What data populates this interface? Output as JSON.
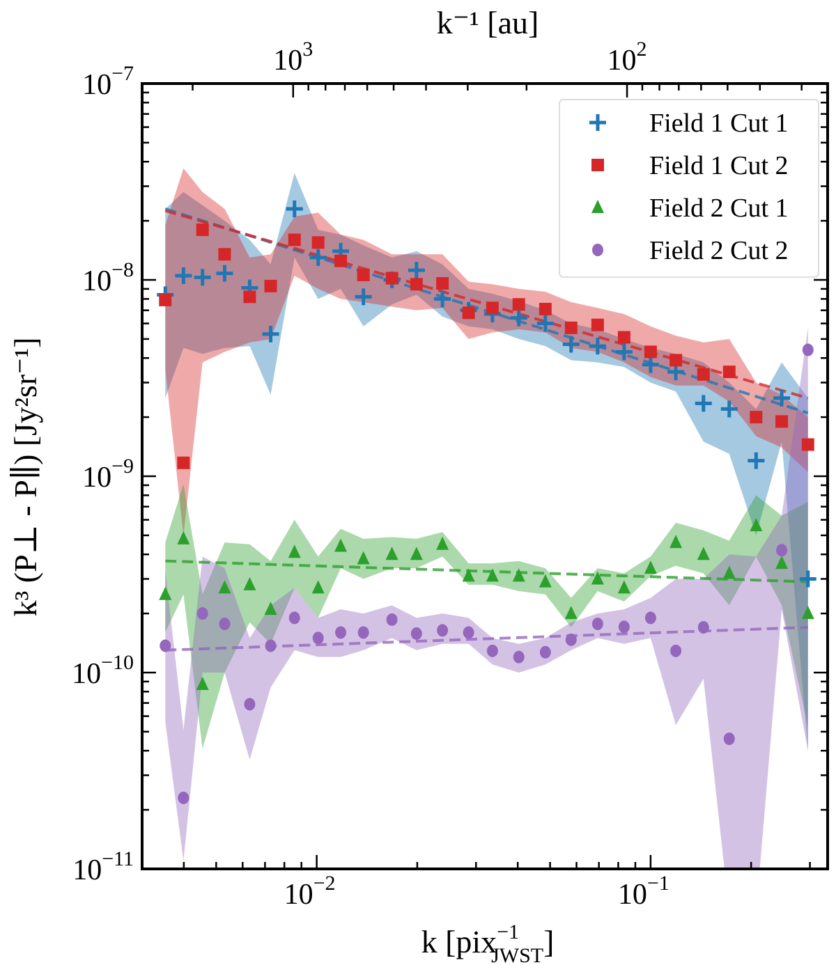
{
  "chart_data": {
    "type": "scatter",
    "title": "",
    "xlabel": {
      "main": "k [pix",
      "sub": "JWST",
      "sup": "−1",
      "close": "]"
    },
    "ylabel": "k³ (P⊥ - P∥) [Jy²sr⁻¹]",
    "top_xlabel": "k⁻¹ [au]",
    "xscale": "log",
    "yscale": "log",
    "xlim": [
      0.003,
      0.339
    ],
    "ylim": [
      1e-11,
      1e-07
    ],
    "grid": false,
    "legend_position": "top-right",
    "x_ticks": [
      {
        "value": 0.01,
        "base": "10",
        "exp": "−2"
      },
      {
        "value": 0.1,
        "base": "10",
        "exp": "−1"
      }
    ],
    "y_ticks": [
      {
        "value": 1e-07,
        "base": "10",
        "exp": "−7"
      },
      {
        "value": 1e-08,
        "base": "10",
        "exp": "−8"
      },
      {
        "value": 1e-09,
        "base": "10",
        "exp": "−9"
      },
      {
        "value": 1e-10,
        "base": "10",
        "exp": "−10"
      },
      {
        "value": 1e-11,
        "base": "10",
        "exp": "−11"
      }
    ],
    "top_ticks": [
      {
        "value": 1000,
        "base": "10",
        "exp": "3"
      },
      {
        "value": 100,
        "base": "10",
        "exp": "2"
      }
    ],
    "x": [
      0.00352,
      0.00399,
      0.00455,
      0.0053,
      0.0063,
      0.00728,
      0.00858,
      0.0101,
      0.0118,
      0.0138,
      0.0168,
      0.0199,
      0.0238,
      0.0285,
      0.0336,
      0.0403,
      0.0484,
      0.0578,
      0.0694,
      0.0833,
      0.1,
      0.119,
      0.144,
      0.172,
      0.207,
      0.247,
      0.296
    ],
    "series": [
      {
        "name": "Field 1 Cut 1",
        "color": "#1f77b4",
        "marker": "plus",
        "values": [
          8.4e-09,
          1.05e-08,
          1.03e-08,
          1.08e-08,
          9.1e-09,
          5.3e-09,
          2.3e-08,
          1.3e-08,
          1.4e-08,
          8.2e-09,
          1e-08,
          1.12e-08,
          8e-09,
          7e-09,
          6.7e-09,
          6.4e-09,
          6e-09,
          4.7e-09,
          4.6e-09,
          4.3e-09,
          3.7e-09,
          3.4e-09,
          2.35e-09,
          2.2e-09,
          1.2e-09,
          2.5e-09,
          3e-10
        ],
        "upper": [
          2.3e-08,
          2.8e-08,
          2.4e-08,
          2e-08,
          1.6e-08,
          1.2e-08,
          3.5e-08,
          1.8e-08,
          1.7e-08,
          1.5e-08,
          1.3e-08,
          1.4e-08,
          1.2e-08,
          9e-09,
          8.5e-09,
          7.8e-09,
          7e-09,
          6e-09,
          5.6e-09,
          5e-09,
          4.5e-09,
          4.2e-09,
          3.8e-09,
          3e-09,
          2.2e-09,
          3.8e-09,
          2.5e-09
        ],
        "lower": [
          2.5e-09,
          4.5e-09,
          4.2e-09,
          4.5e-09,
          4.6e-09,
          2.6e-09,
          1.3e-08,
          8e-09,
          9e-09,
          5.8e-09,
          7.5e-09,
          8.4e-09,
          6.5e-09,
          5.8e-09,
          5.6e-09,
          5e-09,
          4.6e-09,
          3.9e-09,
          3.8e-09,
          3.6e-09,
          3e-09,
          2.7e-09,
          1.5e-09,
          1.3e-09,
          5e-10,
          1.5e-09,
          4e-11
        ],
        "fit": [
          2.3e-08,
          2.1e-09
        ]
      },
      {
        "name": "Field 1 Cut 2",
        "color": "#d62728",
        "marker": "square",
        "values": [
          7.9e-09,
          1.17e-09,
          1.8e-08,
          1.35e-08,
          8.2e-09,
          9.3e-09,
          1.6e-08,
          1.55e-08,
          1.25e-08,
          1.06e-08,
          1.02e-08,
          9.5e-09,
          9.6e-09,
          6.8e-09,
          7.2e-09,
          7.5e-09,
          7.1e-09,
          5.7e-09,
          5.9e-09,
          5.1e-09,
          4.3e-09,
          3.9e-09,
          3.3e-09,
          3.4e-09,
          2e-09,
          1.9e-09,
          1.45e-09
        ],
        "upper": [
          1.9e-08,
          3.7e-08,
          2.8e-08,
          2.3e-08,
          1.3e-08,
          1.35e-08,
          2.1e-08,
          2.2e-08,
          1.7e-08,
          1.6e-08,
          1.35e-08,
          1.35e-08,
          1.35e-08,
          9.8e-09,
          9.5e-09,
          9e-09,
          8.7e-09,
          7.7e-09,
          7.2e-09,
          6.7e-09,
          5.8e-09,
          5.2e-09,
          4.8e-09,
          5e-09,
          3e-09,
          2.6e-09,
          2e-09
        ],
        "lower": [
          3.5e-09,
          5e-10,
          3.8e-09,
          4.3e-09,
          4.8e-09,
          5e-09,
          1.05e-08,
          9e-09,
          8e-09,
          7.7e-09,
          7.3e-09,
          7e-09,
          7.2e-09,
          5e-09,
          5.4e-09,
          5.6e-09,
          5.4e-09,
          4.5e-09,
          4.3e-09,
          3.8e-09,
          3.2e-09,
          2.9e-09,
          2.9e-09,
          2.4e-09,
          1.6e-09,
          1.4e-09,
          1.05e-09
        ],
        "fit": [
          2.25e-08,
          2.5e-09
        ]
      },
      {
        "name": "Field 2 Cut 1",
        "color": "#2ca02c",
        "marker": "triangle",
        "values": [
          2.5e-10,
          4.8e-10,
          8.7e-11,
          2.7e-10,
          2.8e-10,
          2.1e-10,
          4.1e-10,
          2.7e-10,
          4.4e-10,
          3.8e-10,
          4e-10,
          4e-10,
          4.5e-10,
          3.1e-10,
          3.1e-10,
          3.1e-10,
          2.9e-10,
          2e-10,
          3e-10,
          2.7e-10,
          3.4e-10,
          4.6e-10,
          4e-10,
          3.2e-10,
          5.6e-10,
          3.6e-10,
          2e-10
        ],
        "upper": [
          4.6e-10,
          9.1e-10,
          2.5e-10,
          4.6e-10,
          4.5e-10,
          3.7e-10,
          6e-10,
          3.9e-10,
          5.4e-10,
          4.8e-10,
          4.9e-10,
          4.8e-10,
          5.2e-10,
          3.6e-10,
          3.6e-10,
          3.7e-10,
          3.4e-10,
          2.4e-10,
          3.4e-10,
          3.2e-10,
          3.9e-10,
          5.8e-10,
          5.3e-10,
          4.7e-10,
          8e-10,
          6.3e-10,
          7.4e-10
        ],
        "lower": [
          1.6e-10,
          2.5e-10,
          4.1e-11,
          1e-10,
          1.8e-10,
          1.4e-10,
          2.7e-10,
          1.9e-10,
          3.4e-10,
          3e-10,
          3.4e-10,
          3.4e-10,
          3.9e-10,
          2.8e-10,
          2.8e-10,
          2.6e-10,
          2.5e-10,
          1.7e-10,
          2.6e-10,
          2.3e-10,
          3.1e-10,
          3.5e-10,
          3.2e-10,
          2.2e-10,
          3.9e-10,
          2.2e-10,
          5.3e-11
        ],
        "fit": [
          3.7e-10,
          2.9e-10
        ]
      },
      {
        "name": "Field 2 Cut 2",
        "color": "#9467bd",
        "marker": "circle",
        "values": [
          1.37e-10,
          2.3e-11,
          2e-10,
          1.77e-10,
          6.9e-11,
          1.37e-10,
          1.9e-10,
          1.5e-10,
          1.6e-10,
          1.6e-10,
          1.86e-10,
          1.58e-10,
          1.64e-10,
          1.6e-10,
          1.29e-10,
          1.2e-10,
          1.27e-10,
          1.47e-10,
          1.77e-10,
          1.71e-10,
          1.9e-10,
          1.29e-10,
          1.7e-10,
          4.6e-11,
          null,
          4.2e-10,
          4.4e-09
        ],
        "upper": [
          3.3e-10,
          5.1e-11,
          3.9e-10,
          3.4e-10,
          1.5e-10,
          2.2e-10,
          2.7e-10,
          1.9e-10,
          2.1e-10,
          2e-10,
          2.2e-10,
          1.9e-10,
          2e-10,
          1.9e-10,
          1.5e-10,
          1.4e-10,
          1.5e-10,
          1.8e-10,
          2e-10,
          2.1e-10,
          2.4e-10,
          3e-10,
          3e-10,
          4e-10,
          3.9e-10,
          6.3e-10,
          5.7e-09
        ],
        "lower": [
          5.6e-11,
          1.1e-11,
          1e-10,
          1e-10,
          3.6e-11,
          8.4e-11,
          1.3e-10,
          1.2e-10,
          1.2e-10,
          1.3e-10,
          1.5e-10,
          1.3e-10,
          1.4e-10,
          1.4e-10,
          1.1e-10,
          1e-10,
          1.1e-10,
          1.3e-10,
          1.5e-10,
          1.4e-10,
          1.5e-10,
          5.4e-11,
          9.3e-11,
          6e-12,
          6e-12,
          2.1e-10,
          4e-11
        ],
        "fit": [
          1.3e-10,
          1.7e-10
        ]
      }
    ]
  }
}
